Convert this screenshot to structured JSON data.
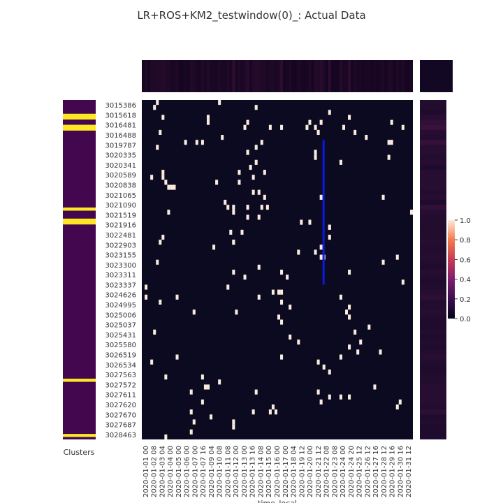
{
  "chart_data": {
    "type": "heatmap",
    "title": "LR+ROS+KM2_testwindow(0)_: Actual Data",
    "xlabel": "time_local",
    "ylabel": "",
    "cluster_label": "Clusters",
    "x_ticks": [
      "2020-01-01 00",
      "2020-01-02 08",
      "2020-01-03 04",
      "2020-01-04 00",
      "2020-01-05 00",
      "2020-01-06 00",
      "2020-01-07 00",
      "2020-01-07 16",
      "2020-01-09 04",
      "2020-01-10 08",
      "2020-01-11 08",
      "2020-01-12 00",
      "2020-01-13 00",
      "2020-01-13 16",
      "2020-01-14 08",
      "2020-01-15 00",
      "2020-01-16 00",
      "2020-01-17 00",
      "2020-01-18 04",
      "2020-01-19 12",
      "2020-01-20 00",
      "2020-01-21 12",
      "2020-01-22 08",
      "2020-01-23 08",
      "2020-01-24 00",
      "2020-01-24 20",
      "2020-01-25 12",
      "2020-01-26 12",
      "2020-01-27 16",
      "2020-01-28 12",
      "2020-01-29 16",
      "2020-01-30 16",
      "2020-01-31 12"
    ],
    "y_ticks": [
      "3015386",
      "3015618",
      "3016481",
      "3016488",
      "3019787",
      "3020335",
      "3020341",
      "3020589",
      "3020838",
      "3021065",
      "3021090",
      "3021519",
      "3021916",
      "3022481",
      "3022903",
      "3023155",
      "3023300",
      "3023311",
      "3023337",
      "3024626",
      "3024995",
      "3025006",
      "3025037",
      "3025431",
      "3025580",
      "3026519",
      "3026534",
      "3027563",
      "3027572",
      "3027611",
      "3027620",
      "3027670",
      "3027687",
      "3028463"
    ],
    "value_range": [
      0,
      1
    ],
    "colorbar_ticks": [
      "0.0",
      "0.2",
      "0.4",
      "0.6",
      "0.8",
      "1.0"
    ],
    "n_rows": 68,
    "n_cols": 96,
    "active_cells": [
      [
        0,
        5
      ],
      [
        0,
        27
      ],
      [
        1,
        4
      ],
      [
        1,
        40
      ],
      [
        2,
        66
      ],
      [
        3,
        7
      ],
      [
        3,
        23
      ],
      [
        3,
        73
      ],
      [
        4,
        23
      ],
      [
        4,
        37
      ],
      [
        4,
        59
      ],
      [
        4,
        63
      ],
      [
        4,
        88
      ],
      [
        5,
        36
      ],
      [
        5,
        45
      ],
      [
        5,
        49
      ],
      [
        5,
        58
      ],
      [
        5,
        61
      ],
      [
        5,
        71
      ],
      [
        5,
        92
      ],
      [
        6,
        6
      ],
      [
        6,
        62
      ],
      [
        6,
        75
      ],
      [
        7,
        28
      ],
      [
        7,
        79
      ],
      [
        8,
        15
      ],
      [
        8,
        21
      ],
      [
        8,
        19
      ],
      [
        8,
        42
      ],
      [
        8,
        87
      ],
      [
        8,
        88
      ],
      [
        9,
        5
      ],
      [
        9,
        40
      ],
      [
        9,
        96
      ],
      [
        10,
        37
      ],
      [
        10,
        61
      ],
      [
        10,
        37
      ],
      [
        11,
        61
      ],
      [
        11,
        87
      ],
      [
        12,
        40
      ],
      [
        12,
        70
      ],
      [
        12,
        96
      ],
      [
        13,
        38
      ],
      [
        14,
        34
      ],
      [
        14,
        43
      ],
      [
        14,
        7
      ],
      [
        15,
        3
      ],
      [
        15,
        39
      ],
      [
        15,
        7
      ],
      [
        16,
        26
      ],
      [
        16,
        34
      ],
      [
        16,
        8
      ],
      [
        17,
        9
      ],
      [
        17,
        10
      ],
      [
        17,
        11
      ],
      [
        18,
        41
      ],
      [
        18,
        39
      ],
      [
        19,
        43
      ],
      [
        19,
        63
      ],
      [
        19,
        85
      ],
      [
        20,
        29
      ],
      [
        21,
        37
      ],
      [
        21,
        30
      ],
      [
        21,
        32
      ],
      [
        21,
        42
      ],
      [
        21,
        44
      ],
      [
        22,
        9
      ],
      [
        22,
        32
      ],
      [
        22,
        95
      ],
      [
        23,
        37
      ],
      [
        23,
        41
      ],
      [
        24,
        56
      ],
      [
        24,
        59
      ],
      [
        25,
        66
      ],
      [
        25,
        66
      ],
      [
        26,
        35
      ],
      [
        26,
        31
      ],
      [
        27,
        7
      ],
      [
        27,
        66
      ],
      [
        28,
        6
      ],
      [
        28,
        32
      ],
      [
        28,
        32
      ],
      [
        29,
        25
      ],
      [
        29,
        63
      ],
      [
        30,
        55
      ],
      [
        30,
        61
      ],
      [
        31,
        63
      ],
      [
        31,
        64
      ],
      [
        31,
        90
      ],
      [
        32,
        5
      ],
      [
        32,
        85
      ],
      [
        33,
        41
      ],
      [
        34,
        32
      ],
      [
        34,
        73
      ],
      [
        34,
        49
      ],
      [
        35,
        51
      ],
      [
        35,
        36
      ],
      [
        36,
        92
      ],
      [
        37,
        1
      ],
      [
        37,
        30
      ],
      [
        38,
        48
      ],
      [
        38,
        49
      ],
      [
        38,
        46
      ],
      [
        39,
        1
      ],
      [
        39,
        12
      ],
      [
        39,
        70
      ],
      [
        39,
        41
      ],
      [
        40,
        6
      ],
      [
        40,
        49
      ],
      [
        41,
        52
      ],
      [
        41,
        73
      ],
      [
        42,
        72
      ],
      [
        42,
        33
      ],
      [
        42,
        18
      ],
      [
        43,
        73
      ],
      [
        43,
        48
      ],
      [
        44,
        49
      ],
      [
        45,
        80
      ],
      [
        46,
        4
      ],
      [
        46,
        75
      ],
      [
        47,
        52
      ],
      [
        48,
        77
      ],
      [
        48,
        55
      ],
      [
        49,
        73
      ],
      [
        50,
        76
      ],
      [
        50,
        84
      ],
      [
        51,
        12
      ],
      [
        51,
        49
      ],
      [
        51,
        70
      ],
      [
        52,
        3
      ],
      [
        52,
        62
      ],
      [
        53,
        64
      ],
      [
        54,
        66
      ],
      [
        55,
        8
      ],
      [
        55,
        21
      ],
      [
        56,
        27
      ],
      [
        56,
        97
      ],
      [
        57,
        22
      ],
      [
        57,
        23
      ],
      [
        57,
        82
      ],
      [
        58,
        17
      ],
      [
        58,
        40
      ],
      [
        58,
        62
      ],
      [
        59,
        73
      ],
      [
        59,
        70
      ],
      [
        59,
        66
      ],
      [
        60,
        21
      ],
      [
        60,
        63
      ],
      [
        60,
        91
      ],
      [
        61,
        46
      ],
      [
        61,
        90
      ],
      [
        62,
        17
      ],
      [
        62,
        47
      ],
      [
        62,
        39
      ],
      [
        62,
        45
      ],
      [
        63,
        24
      ],
      [
        64,
        18
      ],
      [
        64,
        32
      ],
      [
        65,
        32
      ],
      [
        66,
        17
      ],
      [
        67,
        8
      ]
    ],
    "clusters": [
      1,
      0,
      0,
      0,
      0,
      2,
      2,
      0,
      0,
      2,
      2,
      0,
      0,
      0,
      0,
      0,
      0,
      0,
      0,
      0,
      0,
      0,
      0,
      0,
      0,
      0,
      0,
      0,
      0,
      0,
      0,
      0,
      0,
      0,
      0,
      0,
      0,
      0,
      0,
      2,
      0,
      0,
      0,
      2,
      2,
      0,
      0,
      0,
      0,
      0,
      0,
      0,
      0,
      0,
      0,
      0,
      0,
      0,
      0,
      0,
      0,
      0,
      0,
      0,
      0,
      0,
      0,
      0,
      0,
      0,
      0,
      0,
      0,
      0,
      0,
      0,
      0,
      0,
      0,
      0,
      0,
      0,
      0,
      0,
      0,
      0,
      0,
      0,
      0,
      0,
      0,
      0,
      0,
      0,
      0,
      0,
      0,
      0,
      0,
      0,
      0,
      2,
      0,
      0,
      0,
      0,
      0,
      0,
      0,
      0,
      0,
      0,
      0,
      0,
      0,
      0,
      0,
      0,
      0,
      0,
      0,
      2,
      0
    ],
    "highlight_line": {
      "col": 64,
      "row_start": 8,
      "row_end": 37
    }
  }
}
